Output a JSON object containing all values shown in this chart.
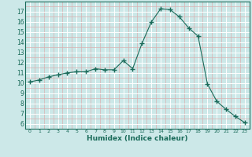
{
  "x": [
    0,
    1,
    2,
    3,
    4,
    5,
    6,
    7,
    8,
    9,
    10,
    11,
    12,
    13,
    14,
    15,
    16,
    17,
    18,
    19,
    20,
    21,
    22,
    23
  ],
  "y": [
    10.1,
    10.3,
    10.6,
    10.8,
    11.0,
    11.1,
    11.1,
    11.4,
    11.3,
    11.3,
    12.2,
    11.4,
    13.9,
    16.0,
    17.3,
    17.2,
    16.5,
    15.4,
    14.6,
    9.9,
    8.2,
    7.4,
    6.7,
    6.1
  ],
  "xlim": [
    -0.5,
    23.5
  ],
  "ylim": [
    5.5,
    18.0
  ],
  "yticks": [
    6,
    7,
    8,
    9,
    10,
    11,
    12,
    13,
    14,
    15,
    16,
    17
  ],
  "xticks": [
    0,
    1,
    2,
    3,
    4,
    5,
    6,
    7,
    8,
    9,
    10,
    11,
    12,
    13,
    14,
    15,
    16,
    17,
    18,
    19,
    20,
    21,
    22,
    23
  ],
  "xlabel": "Humidex (Indice chaleur)",
  "line_color": "#1a6b5a",
  "marker": "+",
  "bg_color": "#cce8e8",
  "major_grid_color": "#ffffff",
  "minor_grid_color": "#d9b0b0"
}
